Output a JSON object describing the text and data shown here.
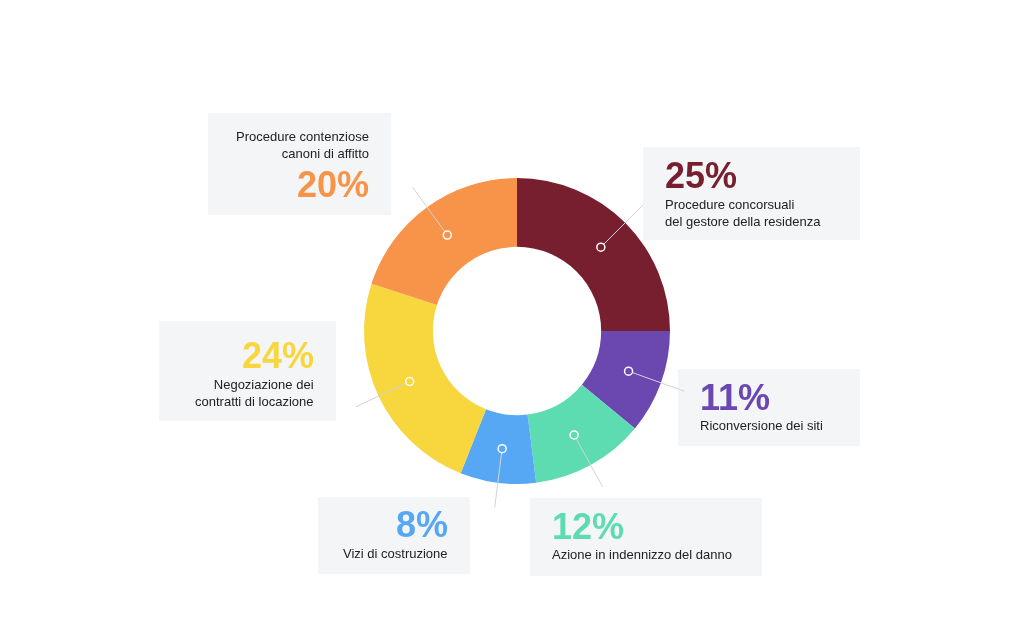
{
  "chart_data": {
    "type": "donut",
    "categories": [
      "Procedure concorsuali\ndel gestore della residenza",
      "Riconversione dei siti",
      "Azione in indennizzo del danno",
      "Vizi di costruzione",
      "Negoziazione dei\ncontratti di locazione",
      "Procedure contenziose\ncanoni di affitto"
    ],
    "values": [
      25,
      11,
      12,
      8,
      24,
      20
    ],
    "value_labels": [
      "25%",
      "11%",
      "12%",
      "8%",
      "24%",
      "20%"
    ],
    "colors": [
      "#781f2f",
      "#6b47b0",
      "#5ddcb2",
      "#56a8f5",
      "#f7d63e",
      "#f7944a"
    ]
  }
}
